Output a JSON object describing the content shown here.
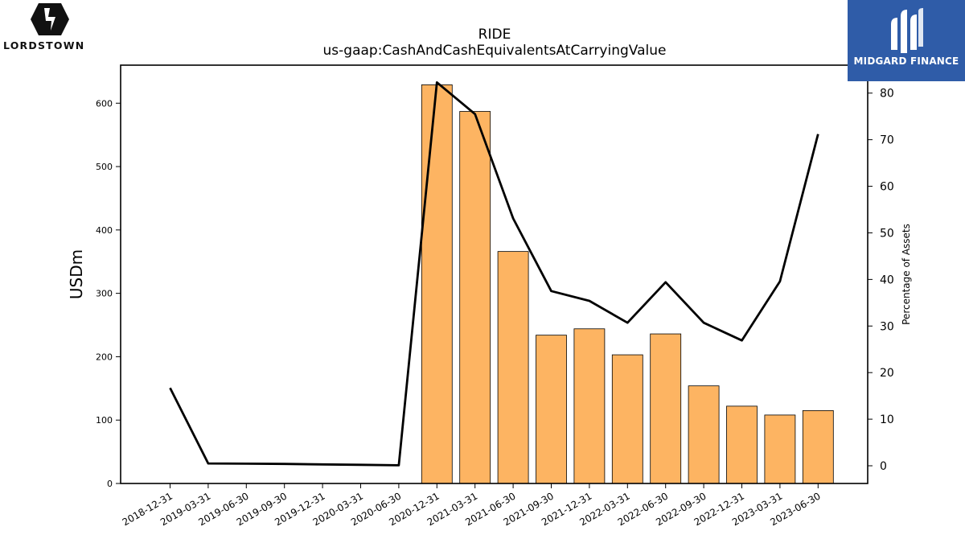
{
  "chart_data": {
    "type": "bar",
    "title": "RIDE",
    "subtitle": "us-gaap:CashAndCashEquivalentsAtCarryingValue",
    "categories": [
      "2018-12-31",
      "2019-03-31",
      "2019-06-30",
      "2019-09-30",
      "2019-12-31",
      "2020-03-31",
      "2020-06-30",
      "2020-12-31",
      "2021-03-31",
      "2021-06-30",
      "2021-09-30",
      "2021-12-31",
      "2022-03-31",
      "2022-06-30",
      "2022-09-30",
      "2022-12-31",
      "2023-03-31",
      "2023-06-30"
    ],
    "ylabel": "USDm",
    "y2label": "Percentage of Assets",
    "ylim": [
      0,
      660
    ],
    "y2lim": [
      -3.8,
      86
    ],
    "yticks": [
      0,
      100,
      200,
      300,
      400,
      500,
      600
    ],
    "y2ticks": [
      0,
      10,
      20,
      30,
      40,
      50,
      60,
      70,
      80
    ],
    "series": [
      {
        "type": "bar",
        "axis": "left",
        "color": "#fdb462",
        "values": [
          0,
          0,
          0,
          0,
          0,
          0,
          0,
          629,
          587,
          366,
          234,
          244,
          203,
          236,
          154,
          122,
          108,
          115
        ]
      },
      {
        "type": "line",
        "axis": "right",
        "color": "#000000",
        "values": [
          16.7,
          0.5,
          0.45,
          0.4,
          0.3,
          0.2,
          0.1,
          82.3,
          75.5,
          53.1,
          37.5,
          35.4,
          30.7,
          39.4,
          30.7,
          26.9,
          39.6,
          71.2
        ]
      }
    ],
    "grid": false,
    "legend": "none"
  },
  "brands": {
    "left_name": "LORDSTOWN",
    "left_icon": "lightning-shield-icon",
    "right_name": "MIDGARD FINANCE",
    "right_icon": "midgard-m-icon",
    "right_color": "#2f5ca8"
  }
}
